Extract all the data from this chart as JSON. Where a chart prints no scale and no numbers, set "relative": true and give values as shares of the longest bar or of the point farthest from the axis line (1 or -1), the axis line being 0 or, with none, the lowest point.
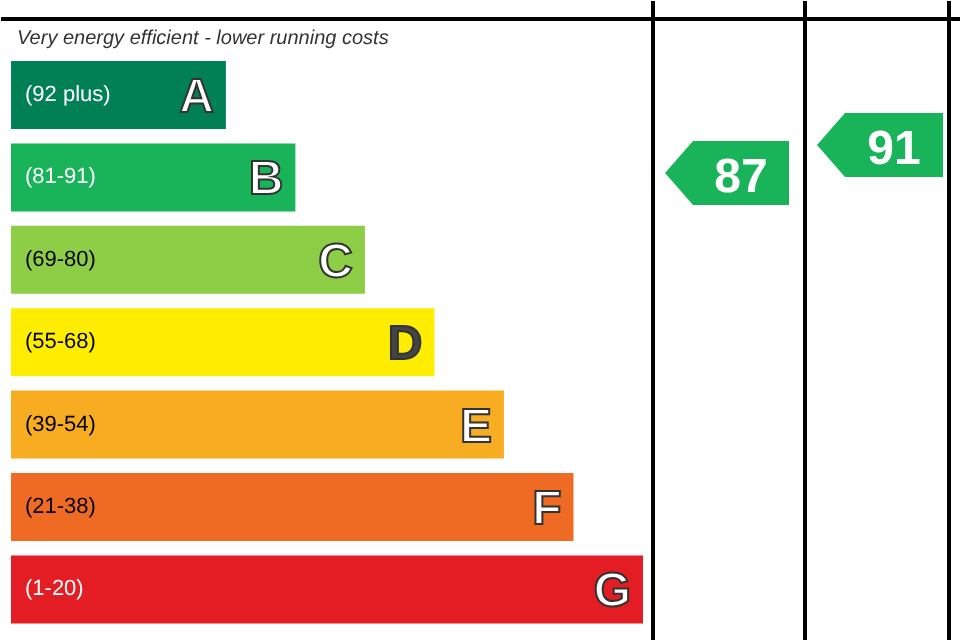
{
  "chart_data": {
    "type": "bar",
    "orientation": "horizontal",
    "relative": true,
    "categories": [
      "A",
      "B",
      "C",
      "D",
      "E",
      "F",
      "G"
    ],
    "values": [
      0.34,
      0.45,
      0.56,
      0.67,
      0.78,
      0.89,
      1.0
    ],
    "colors": [
      "#008054",
      "#19b459",
      "#8dce46",
      "#ffed00",
      "#f7ac21",
      "#ef6b24",
      "#e31d23"
    ],
    "annotations": [
      "Very energy efficient - lower running costs",
      "(92 plus)",
      "(81-91)",
      "(69-80)",
      "(55-68)",
      "(39-54)",
      "(21-38)",
      "(1-20)",
      "87",
      "91"
    ]
  }
}
